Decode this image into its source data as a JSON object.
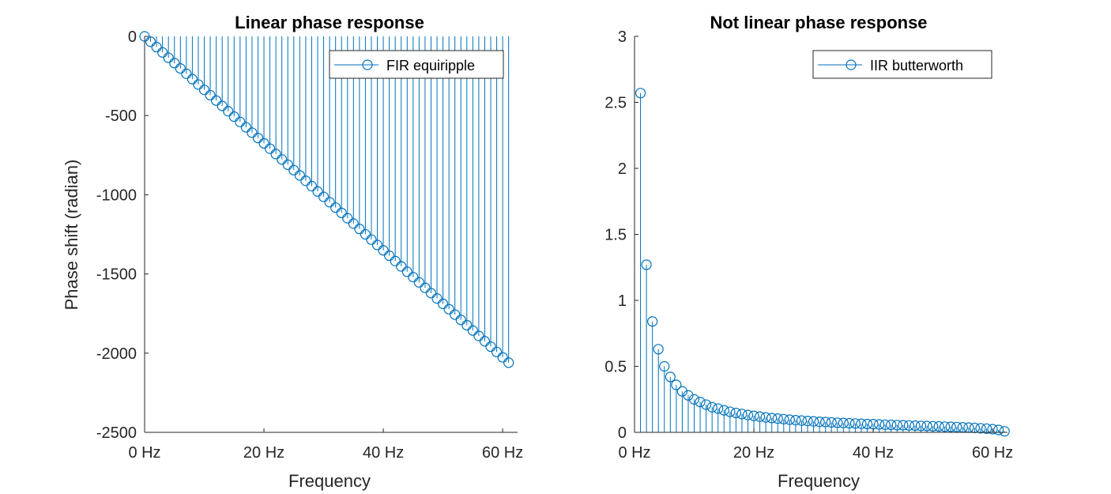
{
  "colors": {
    "series": "#0072BD",
    "axis": "#262626",
    "background": "#ffffff"
  },
  "chart_data": [
    {
      "type": "stem",
      "title": "Linear phase response",
      "xlabel": "Frequency",
      "ylabel": "Phase shift (radian)",
      "xlim": [
        0,
        62.5
      ],
      "ylim": [
        -2500,
        0
      ],
      "xticks": [
        0,
        20,
        40,
        60
      ],
      "xtick_labels": [
        "0 Hz",
        "20 Hz",
        "40 Hz",
        "60 Hz"
      ],
      "yticks": [
        0,
        -500,
        -1000,
        -1500,
        -2000,
        -2500
      ],
      "ytick_labels": [
        "0",
        "-500",
        "-1000",
        "-1500",
        "-2000",
        "-2500"
      ],
      "legend": {
        "label": "FIR equiripple",
        "location": "top-right"
      },
      "series": [
        {
          "name": "FIR equiripple",
          "x": [
            0,
            1,
            2,
            3,
            4,
            5,
            6,
            7,
            8,
            9,
            10,
            11,
            12,
            13,
            14,
            15,
            16,
            17,
            18,
            19,
            20,
            21,
            22,
            23,
            24,
            25,
            26,
            27,
            28,
            29,
            30,
            31,
            32,
            33,
            34,
            35,
            36,
            37,
            38,
            39,
            40,
            41,
            42,
            43,
            44,
            45,
            46,
            47,
            48,
            49,
            50,
            51,
            52,
            53,
            54,
            55,
            56,
            57,
            58,
            59,
            60,
            61
          ],
          "y": [
            0,
            -33.8,
            -67.5,
            -101.3,
            -135.1,
            -168.9,
            -202.6,
            -236.4,
            -270.2,
            -304.0,
            -337.7,
            -371.5,
            -405.3,
            -439.0,
            -472.8,
            -506.6,
            -540.4,
            -574.1,
            -607.9,
            -641.7,
            -675.4,
            -709.2,
            -743.0,
            -776.8,
            -810.5,
            -844.3,
            -878.1,
            -911.9,
            -945.6,
            -979.4,
            -1013.2,
            -1046.9,
            -1080.7,
            -1114.5,
            -1148.3,
            -1182.0,
            -1215.8,
            -1249.6,
            -1283.3,
            -1317.1,
            -1350.9,
            -1384.7,
            -1418.4,
            -1452.2,
            -1486.0,
            -1519.8,
            -1553.5,
            -1587.3,
            -1621.1,
            -1654.8,
            -1688.6,
            -1722.4,
            -1756.2,
            -1789.9,
            -1823.7,
            -1857.5,
            -1891.3,
            -1925.0,
            -1958.8,
            -1992.6,
            -2026.3,
            -2060.1
          ]
        }
      ]
    },
    {
      "type": "stem",
      "title": "Not linear phase response",
      "xlabel": "Frequency",
      "ylabel": "",
      "xlim": [
        0,
        62.5
      ],
      "ylim": [
        0,
        3
      ],
      "xticks": [
        0,
        20,
        40,
        60
      ],
      "xtick_labels": [
        "0 Hz",
        "20 Hz",
        "40 Hz",
        "60 Hz"
      ],
      "yticks": [
        0,
        0.5,
        1,
        1.5,
        2,
        2.5,
        3
      ],
      "ytick_labels": [
        "0",
        "0.5",
        "1",
        "1.5",
        "2",
        "2.5",
        "3"
      ],
      "legend": {
        "label": "IIR butterworth",
        "location": "top-right"
      },
      "series": [
        {
          "name": "IIR butterworth",
          "x": [
            1,
            2,
            3,
            4,
            5,
            6,
            7,
            8,
            9,
            10,
            11,
            12,
            13,
            14,
            15,
            16,
            17,
            18,
            19,
            20,
            21,
            22,
            23,
            24,
            25,
            26,
            27,
            28,
            29,
            30,
            31,
            32,
            33,
            34,
            35,
            36,
            37,
            38,
            39,
            40,
            41,
            42,
            43,
            44,
            45,
            46,
            47,
            48,
            49,
            50,
            51,
            52,
            53,
            54,
            55,
            56,
            57,
            58,
            59,
            60,
            61,
            62
          ],
          "y": [
            2.57,
            1.27,
            0.84,
            0.63,
            0.5,
            0.42,
            0.36,
            0.31,
            0.28,
            0.25,
            0.23,
            0.21,
            0.19,
            0.18,
            0.167,
            0.156,
            0.147,
            0.139,
            0.131,
            0.125,
            0.119,
            0.113,
            0.108,
            0.104,
            0.1,
            0.096,
            0.092,
            0.089,
            0.086,
            0.083,
            0.08,
            0.078,
            0.075,
            0.073,
            0.071,
            0.069,
            0.067,
            0.065,
            0.063,
            0.062,
            0.06,
            0.058,
            0.057,
            0.055,
            0.054,
            0.052,
            0.051,
            0.049,
            0.048,
            0.046,
            0.045,
            0.043,
            0.042,
            0.04,
            0.038,
            0.036,
            0.034,
            0.031,
            0.028,
            0.024,
            0.018,
            0.008
          ]
        }
      ]
    }
  ]
}
